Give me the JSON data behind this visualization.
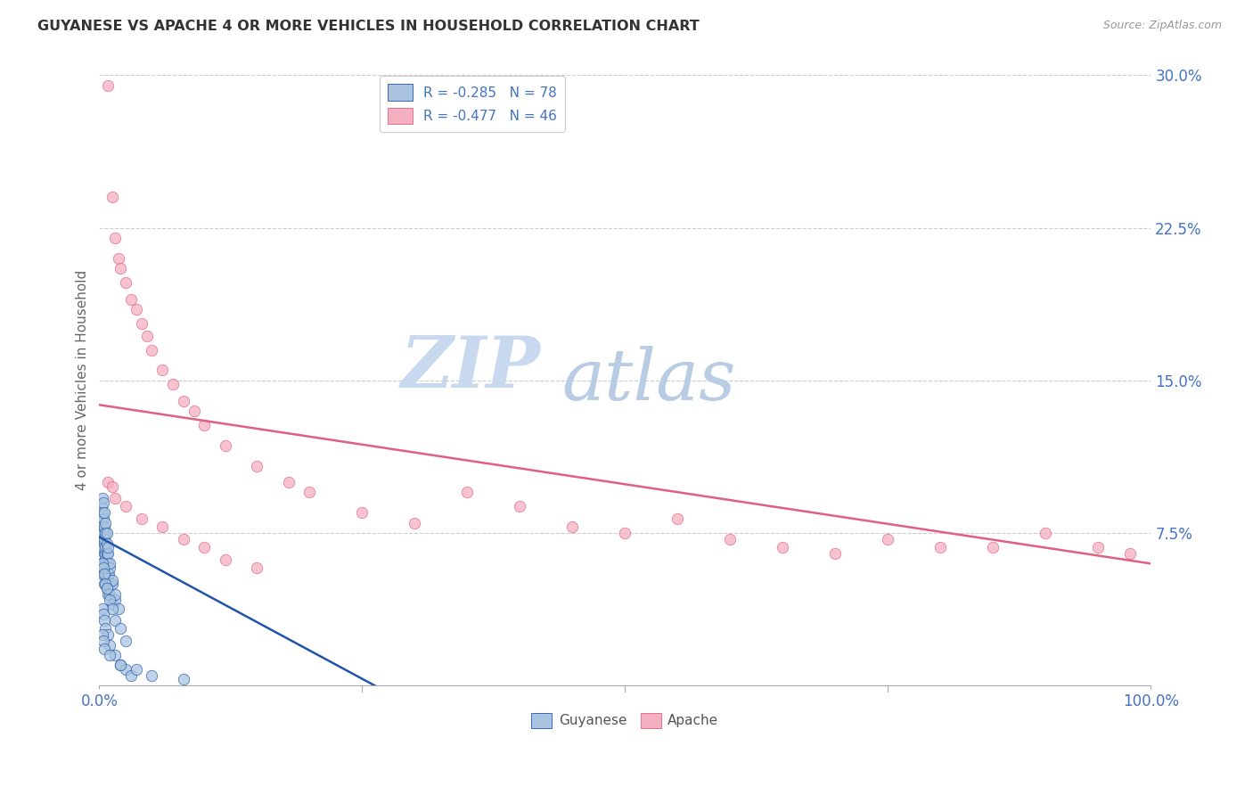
{
  "title": "GUYANESE VS APACHE 4 OR MORE VEHICLES IN HOUSEHOLD CORRELATION CHART",
  "source": "Source: ZipAtlas.com",
  "ylabel": "4 or more Vehicles in Household",
  "xlim": [
    0,
    1.0
  ],
  "ylim": [
    0,
    0.3
  ],
  "guyanese_color": "#aac4e0",
  "apache_color": "#f4afc0",
  "line_guyanese_color": "#2255aa",
  "line_apache_color": "#e06080",
  "watermark_zip": "ZIP",
  "watermark_atlas": "atlas",
  "watermark_color_zip": "#c8d8ea",
  "watermark_color_atlas": "#b0cce8",
  "background_color": "#ffffff",
  "guyanese_line_x": [
    0.0,
    0.28
  ],
  "guyanese_line_y": [
    0.073,
    -0.005
  ],
  "apache_line_x": [
    0.0,
    1.0
  ],
  "apache_line_y": [
    0.138,
    0.06
  ],
  "guyanese_x": [
    0.002,
    0.003,
    0.004,
    0.005,
    0.005,
    0.006,
    0.006,
    0.007,
    0.007,
    0.008,
    0.003,
    0.004,
    0.004,
    0.005,
    0.006,
    0.006,
    0.007,
    0.008,
    0.009,
    0.01,
    0.002,
    0.003,
    0.004,
    0.005,
    0.006,
    0.007,
    0.008,
    0.009,
    0.01,
    0.012,
    0.002,
    0.003,
    0.004,
    0.005,
    0.006,
    0.007,
    0.008,
    0.01,
    0.012,
    0.015,
    0.003,
    0.004,
    0.005,
    0.006,
    0.007,
    0.008,
    0.01,
    0.012,
    0.015,
    0.018,
    0.003,
    0.004,
    0.005,
    0.006,
    0.007,
    0.01,
    0.012,
    0.015,
    0.02,
    0.025,
    0.003,
    0.004,
    0.005,
    0.006,
    0.008,
    0.01,
    0.015,
    0.02,
    0.025,
    0.03,
    0.003,
    0.004,
    0.005,
    0.01,
    0.02,
    0.035,
    0.05,
    0.08
  ],
  "guyanese_y": [
    0.06,
    0.055,
    0.058,
    0.05,
    0.065,
    0.055,
    0.06,
    0.052,
    0.048,
    0.045,
    0.072,
    0.068,
    0.075,
    0.07,
    0.065,
    0.062,
    0.058,
    0.055,
    0.05,
    0.045,
    0.08,
    0.078,
    0.075,
    0.072,
    0.068,
    0.065,
    0.06,
    0.055,
    0.05,
    0.04,
    0.088,
    0.085,
    0.082,
    0.078,
    0.075,
    0.07,
    0.065,
    0.058,
    0.05,
    0.042,
    0.092,
    0.09,
    0.085,
    0.08,
    0.075,
    0.068,
    0.06,
    0.052,
    0.045,
    0.038,
    0.06,
    0.058,
    0.055,
    0.05,
    0.048,
    0.042,
    0.038,
    0.032,
    0.028,
    0.022,
    0.038,
    0.035,
    0.032,
    0.028,
    0.025,
    0.02,
    0.015,
    0.01,
    0.008,
    0.005,
    0.025,
    0.022,
    0.018,
    0.015,
    0.01,
    0.008,
    0.005,
    0.003
  ],
  "apache_x": [
    0.008,
    0.012,
    0.015,
    0.018,
    0.02,
    0.025,
    0.03,
    0.035,
    0.04,
    0.045,
    0.05,
    0.06,
    0.07,
    0.08,
    0.09,
    0.1,
    0.12,
    0.15,
    0.18,
    0.2,
    0.25,
    0.3,
    0.35,
    0.4,
    0.45,
    0.5,
    0.55,
    0.6,
    0.65,
    0.7,
    0.75,
    0.8,
    0.85,
    0.9,
    0.95,
    0.98,
    0.008,
    0.012,
    0.015,
    0.025,
    0.04,
    0.06,
    0.08,
    0.1,
    0.12,
    0.15
  ],
  "apache_y": [
    0.295,
    0.24,
    0.22,
    0.21,
    0.205,
    0.198,
    0.19,
    0.185,
    0.178,
    0.172,
    0.165,
    0.155,
    0.148,
    0.14,
    0.135,
    0.128,
    0.118,
    0.108,
    0.1,
    0.095,
    0.085,
    0.08,
    0.095,
    0.088,
    0.078,
    0.075,
    0.082,
    0.072,
    0.068,
    0.065,
    0.072,
    0.068,
    0.068,
    0.075,
    0.068,
    0.065,
    0.1,
    0.098,
    0.092,
    0.088,
    0.082,
    0.078,
    0.072,
    0.068,
    0.062,
    0.058
  ]
}
